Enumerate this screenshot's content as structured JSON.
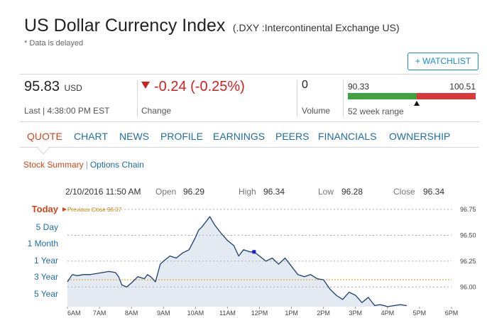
{
  "header": {
    "title": "US Dollar Currency Index",
    "exchange": "(.DXY :Intercontinental Exchange US)",
    "delayed_note": "* Data is delayed",
    "watchlist_label": "+ WATCHLIST"
  },
  "quote": {
    "last_price": "95.83",
    "currency": "USD",
    "last_time": "Last | 4:38:00 PM EST",
    "change": "-0.24 (-0.25%)",
    "change_label": "Change",
    "volume": "0",
    "volume_label": "Volume",
    "week52_low": "90.33",
    "week52_high": "100.51",
    "week52_label": "52 week range",
    "week52_position": 0.54,
    "colors": {
      "down": "#d02121",
      "range_low": "#3ea33e",
      "range_high": "#d83a3a"
    }
  },
  "tabs": [
    "QUOTE",
    "CHART",
    "NEWS",
    "PROFILE",
    "EARNINGS",
    "PEERS",
    "FINANCIALS",
    "OWNERSHIP"
  ],
  "subnav": {
    "active": "Stock Summary",
    "separator": "|",
    "link": "Options Chain"
  },
  "chart_header": {
    "datetime": "2/10/2016 11:50 AM",
    "open_label": "Open",
    "open": "96.29",
    "high_label": "High",
    "high": "96.34",
    "low_label": "Low",
    "low": "96.28",
    "close_label": "Close",
    "close": "96.34"
  },
  "range_menu": [
    "Today",
    "5 Day",
    "1 Month",
    "1 Year",
    "3 Year",
    "5 Year"
  ],
  "chart_data": {
    "type": "area",
    "previous_close_label": "Previous Close 96.07",
    "previous_close": 96.07,
    "x_ticks": [
      "6AM",
      "7AM",
      "8AM",
      "9AM",
      "10AM",
      "11AM",
      "12PM",
      "1PM",
      "2PM",
      "3PM",
      "4PM",
      "5PM",
      "6PM"
    ],
    "y_ticks": [
      "96.75",
      "96.50",
      "96.25",
      "96.00"
    ],
    "ylim": [
      95.81,
      96.75
    ],
    "xlim": [
      6,
      18
    ],
    "x": [
      6.0,
      6.15,
      6.3,
      6.5,
      6.7,
      6.9,
      7.1,
      7.3,
      7.5,
      7.6,
      7.7,
      7.85,
      8.0,
      8.2,
      8.4,
      8.5,
      8.6,
      8.75,
      8.9,
      9.0,
      9.2,
      9.4,
      9.6,
      9.8,
      10.0,
      10.1,
      10.2,
      10.3,
      10.45,
      10.6,
      10.8,
      11.0,
      11.2,
      11.35,
      11.5,
      11.7,
      11.83,
      12.0,
      12.2,
      12.4,
      12.6,
      12.8,
      13.0,
      13.2,
      13.4,
      13.6,
      13.8,
      14.0,
      14.2,
      14.4,
      14.6,
      14.8,
      15.0,
      15.2,
      15.4,
      15.6,
      15.75,
      15.9,
      16.0,
      16.2,
      16.4,
      16.6
    ],
    "y": [
      96.05,
      96.12,
      96.11,
      96.12,
      96.12,
      96.13,
      96.14,
      96.15,
      96.14,
      96.1,
      96.02,
      96.0,
      96.04,
      96.1,
      96.08,
      96.12,
      96.1,
      96.05,
      96.22,
      96.25,
      96.3,
      96.28,
      96.33,
      96.36,
      96.48,
      96.55,
      96.58,
      96.62,
      96.68,
      96.6,
      96.52,
      96.45,
      96.4,
      96.3,
      96.36,
      96.34,
      96.34,
      96.3,
      96.25,
      96.28,
      96.22,
      96.28,
      96.2,
      96.12,
      96.1,
      96.12,
      96.08,
      96.07,
      95.98,
      95.92,
      95.88,
      95.95,
      95.92,
      95.85,
      95.9,
      95.82,
      95.83,
      95.82,
      95.81,
      95.82,
      95.83,
      95.82
    ],
    "marker": {
      "x": 11.83,
      "y": 96.34
    },
    "colors": {
      "line": "#1c3d6e",
      "fill": "#e3eaf2",
      "prev_close": "#d9a21c",
      "grid": "#aaaaaa"
    }
  }
}
